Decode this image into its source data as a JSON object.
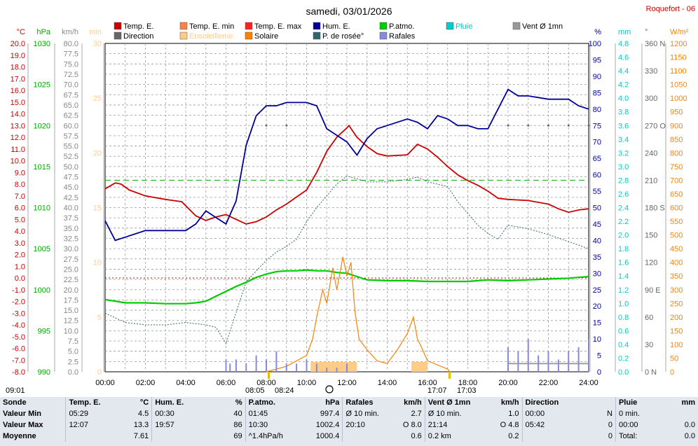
{
  "page": {
    "title": "samedi, 03/01/2026",
    "station": "Roquefort - 06"
  },
  "legend": [
    {
      "label": "Temp. E.",
      "color": "#cc0000"
    },
    {
      "label": "Temp. E. min",
      "color": "#ff8040"
    },
    {
      "label": "Temp. E. max",
      "color": "#ff2020"
    },
    {
      "label": "Hum. E.",
      "color": "#000099"
    },
    {
      "label": "P.atmo.",
      "color": "#00cc00"
    },
    {
      "label": "Pluie",
      "color": "#00cccc"
    },
    {
      "label": "Vent Ø 1mn",
      "color": "#999999"
    },
    {
      "label": "Direction",
      "color": "#666666"
    },
    {
      "label": "Ensoleilleme",
      "color": "#ffcc88"
    },
    {
      "label": "Solaire",
      "color": "#ff8000"
    },
    {
      "label": "P. de rosée°",
      "color": "#336666"
    },
    {
      "label": "Rafales",
      "color": "#8888dd"
    }
  ],
  "axes": {
    "temp": {
      "unit": "°C",
      "color": "#cc0000",
      "ticks": [
        "20.0",
        "19.0",
        "18.0",
        "17.0",
        "16.0",
        "15.0",
        "14.0",
        "13.0",
        "12.0",
        "11.0",
        "10.0",
        "9.0",
        "8.0",
        "7.0",
        "6.0",
        "5.0",
        "4.0",
        "3.0",
        "2.0",
        "1.0",
        "0.0",
        "-1.0",
        "-2.0",
        "-3.0",
        "-4.0",
        "-5.0",
        "-6.0",
        "-7.0",
        "-8.0"
      ]
    },
    "press": {
      "unit": "hPa",
      "color": "#00aa00",
      "ticks": [
        "1030",
        "1025",
        "1020",
        "1015",
        "1010",
        "1005",
        "1000",
        "995",
        "990"
      ]
    },
    "wind": {
      "unit": "km/h",
      "color": "#888888",
      "ticks": [
        "80.0",
        "77.5",
        "75.0",
        "72.5",
        "70.0",
        "67.5",
        "65.0",
        "62.5",
        "60.0",
        "57.5",
        "55.0",
        "52.5",
        "50.0",
        "47.5",
        "45.0",
        "42.5",
        "40.0",
        "37.5",
        "35.0",
        "32.5",
        "30.0",
        "27.5",
        "25.0",
        "22.5",
        "20.0",
        "17.5",
        "15.0",
        "12.5",
        "10.0",
        "7.5",
        "5.0",
        "2.5",
        "0.0"
      ]
    },
    "sun": {
      "unit": "min",
      "color": "#ffcc88",
      "ticks": [
        "30",
        "25",
        "20",
        "15",
        "10",
        "5",
        "0"
      ]
    },
    "hum": {
      "unit": "%",
      "color": "#000099",
      "ticks": [
        "100",
        "95",
        "90",
        "85",
        "80",
        "75",
        "70",
        "65",
        "60",
        "55",
        "50",
        "45",
        "40",
        "35",
        "30",
        "25",
        "20",
        "15",
        "10",
        "5",
        "0"
      ]
    },
    "rain": {
      "unit": "mm",
      "color": "#00cccc",
      "ticks": [
        "4.8",
        "4.6",
        "4.4",
        "4.2",
        "4.0",
        "3.8",
        "3.6",
        "3.4",
        "3.2",
        "3.0",
        "2.8",
        "2.6",
        "2.4",
        "2.2",
        "2.0",
        "1.8",
        "1.6",
        "1.4",
        "1.2",
        "1.0",
        "0.8",
        "0.6",
        "0.4",
        "0.2",
        "0.0"
      ]
    },
    "dir": {
      "unit": "°",
      "color": "#666666",
      "ticks": [
        "360 N",
        "330",
        "300",
        "270 O",
        "240",
        "210",
        "180 S",
        "150",
        "120",
        "90 E",
        "60",
        "30",
        "0 N"
      ]
    },
    "solar": {
      "unit": "W/m²",
      "color": "#ff8000",
      "ticks": [
        "1200",
        "1150",
        "1100",
        "1050",
        "1000",
        "950",
        "900",
        "850",
        "800",
        "750",
        "700",
        "650",
        "600",
        "550",
        "500",
        "450",
        "400",
        "350",
        "300",
        "250",
        "200",
        "150",
        "100",
        "50",
        "0"
      ]
    },
    "time": [
      "00:00",
      "02:00",
      "04:00",
      "06:00",
      "08:00",
      "10:00",
      "12:00",
      "14:00",
      "16:00",
      "18:00",
      "20:00",
      "22:00",
      "24:00"
    ]
  },
  "sun_markers": {
    "moonrise": "09:01",
    "sunrise": "08:05",
    "dawn": "08:24",
    "sunset": "17:07",
    "dusk": "17:03"
  },
  "chart_data": {
    "type": "line",
    "x_unit": "hour",
    "xlim": [
      0,
      24
    ],
    "series": [
      {
        "name": "Temp. E.",
        "unit": "°C",
        "color": "#cc0000",
        "x": [
          0,
          0.5,
          0.8,
          1.2,
          2,
          3,
          3.8,
          4.5,
          5,
          5.5,
          6,
          6.5,
          7,
          7.5,
          8,
          8.5,
          9,
          9.5,
          10,
          10.5,
          11,
          11.5,
          12,
          12.1,
          12.5,
          13,
          13.5,
          14,
          15,
          15.5,
          16,
          16.5,
          17,
          17.5,
          18,
          18.5,
          19,
          19.5,
          20,
          21,
          22,
          22.5,
          23,
          23.5,
          24
        ],
        "y": [
          7.6,
          8.1,
          8.0,
          7.5,
          7.0,
          6.7,
          6.5,
          5.3,
          4.9,
          5.2,
          5.4,
          5.0,
          4.6,
          4.8,
          5.2,
          5.8,
          6.3,
          6.9,
          7.5,
          9.0,
          10.8,
          12.0,
          12.8,
          13.0,
          12.0,
          11.2,
          10.6,
          10.4,
          10.5,
          11.4,
          11.0,
          10.3,
          9.5,
          8.8,
          8.3,
          7.9,
          7.4,
          6.8,
          6.7,
          6.6,
          6.3,
          5.9,
          5.6,
          5.8,
          5.9
        ]
      },
      {
        "name": "P. de rosée°",
        "unit": "°C",
        "color": "#336666",
        "x": [
          0,
          1,
          2,
          3,
          4,
          5,
          5.5,
          6,
          7,
          8,
          8.5,
          9,
          9.5,
          10,
          10.5,
          11,
          11.5,
          12,
          13,
          14,
          15,
          15.5,
          16,
          17,
          17.5,
          18,
          18.5,
          19,
          19.5,
          20,
          21,
          22,
          23,
          24
        ],
        "y": [
          -3.0,
          -3.8,
          -4.0,
          -4.0,
          -3.8,
          -4.0,
          -4.2,
          -5.6,
          -0.3,
          1.5,
          2.2,
          2.7,
          3.3,
          4.8,
          6.0,
          7.0,
          8.0,
          8.7,
          8.2,
          8.2,
          8.4,
          8.6,
          8.2,
          7.8,
          6.5,
          5.5,
          4.5,
          3.8,
          3.3,
          4.5,
          4.2,
          3.7,
          3.1,
          2.5
        ]
      },
      {
        "name": "Hum. E.",
        "unit": "%",
        "color": "#000099",
        "x": [
          0,
          0.5,
          1,
          1.5,
          2,
          3,
          3.5,
          4,
          4.5,
          5,
          5.5,
          6,
          6.5,
          7,
          7.5,
          8,
          8.5,
          9,
          9.5,
          10,
          10.5,
          11,
          11.5,
          12,
          12.5,
          13,
          13.5,
          14,
          15,
          15.5,
          16,
          16.5,
          17,
          17.5,
          18,
          18.5,
          19,
          19.5,
          20,
          20.5,
          21,
          22,
          23,
          23.5,
          24
        ],
        "y": [
          46,
          40,
          41,
          42,
          43,
          43,
          43,
          43,
          45,
          49,
          47,
          45,
          52,
          69,
          78,
          81,
          81,
          82,
          82,
          82,
          81,
          74,
          72,
          70,
          66,
          71,
          74,
          75,
          77,
          76,
          74,
          78,
          77,
          75,
          75,
          74,
          74,
          80,
          86,
          84,
          84,
          83,
          83,
          81,
          80
        ]
      },
      {
        "name": "P.atmo.",
        "unit": "hPa",
        "color": "#00cc00",
        "x": [
          0,
          1,
          2,
          3,
          4,
          4.5,
          5,
          5.5,
          6,
          6.5,
          7,
          7.5,
          8,
          8.5,
          9,
          9.5,
          10,
          10.5,
          11,
          11.5,
          12,
          12.5,
          13,
          14,
          15,
          16,
          17,
          18,
          19,
          20,
          21,
          22,
          23,
          24
        ],
        "y": [
          998.8,
          998.4,
          998.4,
          998.3,
          998.3,
          998.4,
          998.6,
          999.2,
          999.8,
          1000.4,
          1000.9,
          1001.5,
          1001.9,
          1002.2,
          1002.3,
          1002.3,
          1002.4,
          1002.3,
          1002.3,
          1002.1,
          1002.0,
          1001.6,
          1001.2,
          1001.1,
          1001.1,
          1001.0,
          1001.0,
          1001.0,
          1001.2,
          1001.1,
          1001.2,
          1001.3,
          1001.4,
          1001.6
        ]
      },
      {
        "name": "Solaire",
        "unit": "W/m²",
        "color": "#ff8000",
        "x": [
          8,
          9,
          10,
          10.3,
          10.5,
          10.8,
          11,
          11.3,
          11.5,
          11.8,
          12,
          12.2,
          12.4,
          12.6,
          13,
          13.5,
          14,
          14.5,
          15,
          15.2,
          15.3,
          15.5,
          15.7,
          16,
          17,
          17.1
        ],
        "y": [
          0,
          20,
          60,
          120,
          200,
          300,
          250,
          380,
          300,
          420,
          350,
          400,
          220,
          120,
          80,
          40,
          30,
          80,
          140,
          180,
          200,
          120,
          90,
          40,
          10,
          0
        ]
      },
      {
        "name": "Ensoleilleme",
        "unit": "min",
        "color": "#ffcc88",
        "x": [
          8.1,
          9,
          10,
          10.2,
          11,
          12,
          12.5,
          13,
          15,
          15.2,
          15.5,
          16
        ],
        "y": [
          0,
          0,
          0,
          1,
          1,
          1,
          0,
          0,
          0,
          1,
          1,
          0
        ]
      },
      {
        "name": "Rafales",
        "unit": "km/h",
        "color": "#8888dd",
        "x": [
          6,
          6.2,
          6.5,
          7,
          7.5,
          8,
          8.5,
          9,
          9.5,
          10,
          10.5,
          11,
          11.5,
          12,
          20,
          20.5,
          21,
          21.5,
          22,
          22.5,
          23,
          23.5,
          24
        ],
        "y": [
          3,
          2,
          3,
          2,
          4,
          3,
          5,
          2,
          2,
          3,
          2,
          1,
          1,
          2,
          6,
          5,
          8,
          4,
          5,
          3,
          5,
          6,
          8
        ]
      },
      {
        "name": "Vent Ø 1mn",
        "unit": "km/h",
        "color": "#999999",
        "x": [
          20,
          21,
          22,
          23,
          24
        ],
        "y": [
          2,
          2,
          2,
          2,
          2
        ]
      },
      {
        "name": "Direction",
        "unit": "°",
        "color": "#666666",
        "x": [
          8,
          9,
          20,
          21,
          22,
          23,
          24
        ],
        "y": [
          270,
          270,
          270,
          270,
          270,
          270,
          270
        ]
      }
    ],
    "reference_lines": [
      {
        "axis": "temp",
        "value": 0,
        "color": "#cc0000",
        "style": "dotted"
      },
      {
        "axis": "solar",
        "value": 700,
        "color": "#00aa00",
        "style": "dashed"
      }
    ]
  },
  "table": {
    "headers": [
      {
        "label": "Sonde"
      },
      {
        "label": "Temp. E.",
        "unit": "°C"
      },
      {
        "label": "Hum. E.",
        "unit": "%"
      },
      {
        "label": "P.atmo.",
        "unit": "hPa"
      },
      {
        "label": "Rafales",
        "unit": "km/h"
      },
      {
        "label": "Vent Ø 1mn",
        "unit": "km/h"
      },
      {
        "label": "Direction"
      },
      {
        "label": "Pluie",
        "unit": "mm"
      }
    ],
    "rows": [
      {
        "label": "Valeur Min",
        "cells": [
          [
            "05:29",
            "4.5"
          ],
          [
            "00:30",
            "40"
          ],
          [
            "01:45",
            "997.4"
          ],
          [
            "Ø 10 min.",
            "2.7"
          ],
          [
            "Ø 10 min.",
            "1.0"
          ],
          [
            "00:00",
            "N"
          ],
          [
            "0 min.",
            ""
          ]
        ]
      },
      {
        "label": "Valeur Max",
        "cells": [
          [
            "12:07",
            "13.3"
          ],
          [
            "19:57",
            "86"
          ],
          [
            "10:30",
            "1002.4"
          ],
          [
            "20:10",
            "O 8.0"
          ],
          [
            "21:14",
            "O 4.8"
          ],
          [
            "05:42",
            "0"
          ],
          [
            "00:00",
            "0.0"
          ]
        ]
      },
      {
        "label": "Moyenne",
        "cells": [
          [
            "",
            "7.61"
          ],
          [
            "",
            "69"
          ],
          [
            "^1.4hPa/h",
            "1000.4"
          ],
          [
            "",
            "0.6"
          ],
          [
            "0.2 km",
            "0.2"
          ],
          [
            "",
            "0"
          ],
          [
            "Total:",
            "0.0"
          ]
        ]
      }
    ]
  }
}
